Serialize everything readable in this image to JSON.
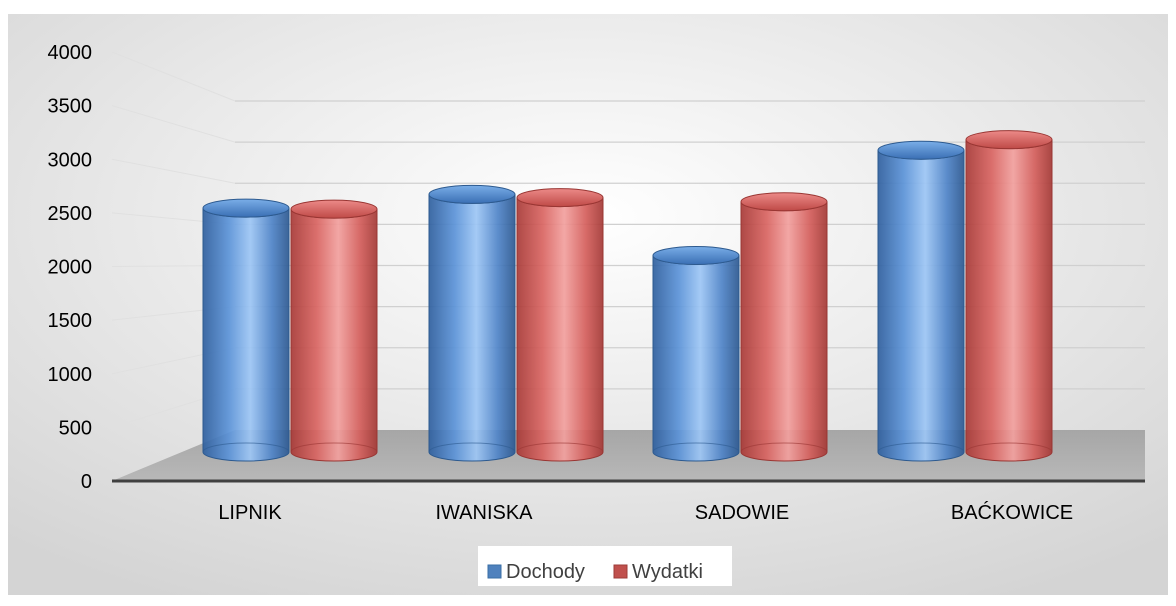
{
  "chart_data": {
    "type": "bar",
    "title": "",
    "xlabel": "",
    "ylabel": "",
    "ylim": [
      0,
      4000
    ],
    "yticks": [
      0,
      500,
      1000,
      1500,
      2000,
      2500,
      3000,
      3500,
      4000
    ],
    "categories": [
      "LIPNIK",
      "IWANISKA",
      "SADOWIE",
      "BAĆKOWICE"
    ],
    "series": [
      {
        "name": "Dochody",
        "values": [
          2650,
          2780,
          2200,
          3200
        ],
        "color": "#4f81bd"
      },
      {
        "name": "Wydatki",
        "values": [
          2640,
          2750,
          2710,
          3300
        ],
        "color": "#c0504d"
      }
    ],
    "legend_position": "bottom",
    "grid": true,
    "bar_shape": "cylinder"
  }
}
